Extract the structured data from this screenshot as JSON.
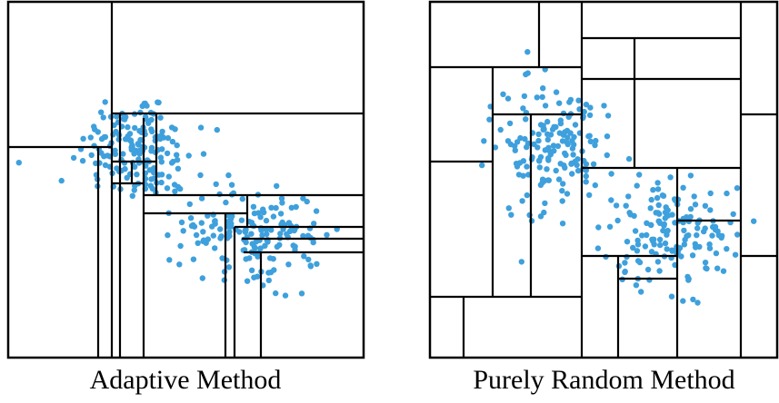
{
  "panels": [
    {
      "id": "adaptive",
      "caption": "Adaptive Method",
      "frame_color": "#000000",
      "point_color": "#3ea0dc",
      "points_per_cluster": 170,
      "clusters": 2
    },
    {
      "id": "random",
      "caption": "Purely Random Method",
      "frame_color": "#000000",
      "point_color": "#3ea0dc",
      "points_per_cluster": 160,
      "clusters": 2
    }
  ]
}
